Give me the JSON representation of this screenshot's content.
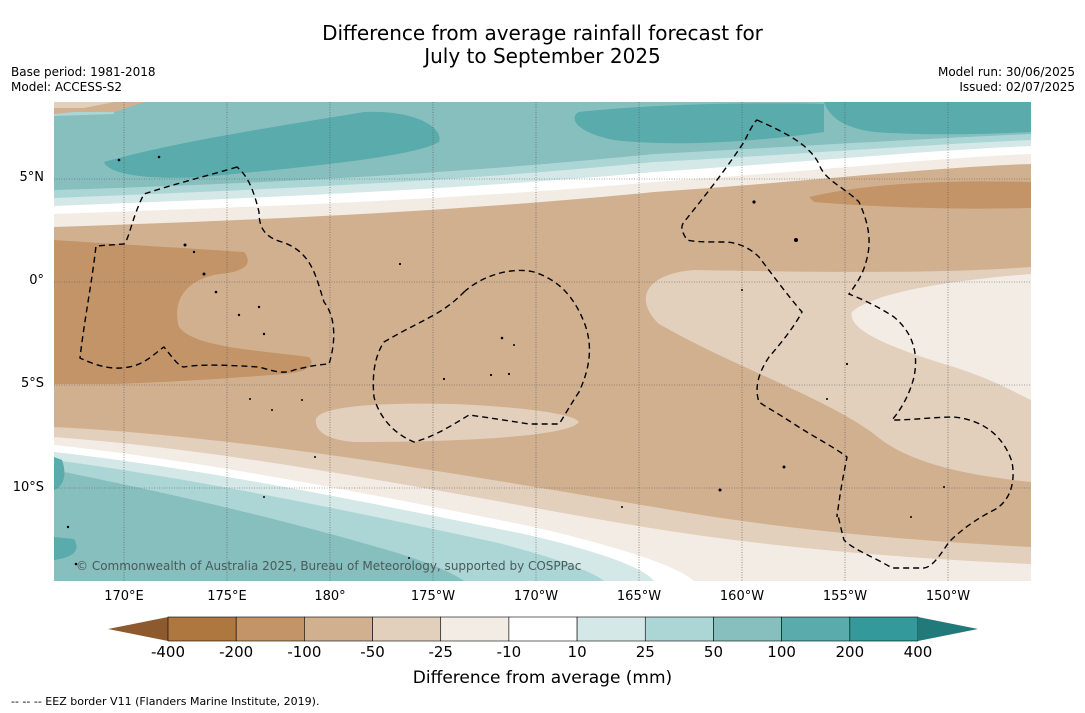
{
  "title_line1": "Difference from average rainfall forecast for",
  "title_line2": "July to September 2025",
  "meta_left": {
    "base_period": "Base period: 1981-2018",
    "model": "Model: ACCESS-S2"
  },
  "meta_right": {
    "model_run": "Model run: 30/06/2025",
    "issued": "Issued: 02/07/2025"
  },
  "latitude_labels": [
    "5°N",
    "0°",
    "5°S",
    "10°S"
  ],
  "longitude_labels": [
    "170°E",
    "175°E",
    "180°",
    "175°W",
    "170°W",
    "165°W",
    "160°W",
    "155°W",
    "150°W"
  ],
  "copyright": "© Commonwealth of Australia 2025, Bureau of Meteorology, supported by COSPPac",
  "colorbar": {
    "ticks": [
      "-400",
      "-200",
      "-100",
      "-50",
      "-25",
      "-10",
      "10",
      "25",
      "50",
      "100",
      "200",
      "400"
    ],
    "colors": [
      "#8c5a2e",
      "#ae773f",
      "#c29468",
      "#d1b08f",
      "#e2cfbc",
      "#f3ece4",
      "#ffffff",
      "#d3e8e7",
      "#acd6d5",
      "#86bfbe",
      "#5aabac",
      "#33999a",
      "#22797a"
    ],
    "title": "Difference from average (mm)"
  },
  "footnote": "--  --  -- EEZ border V11 (Flanders Marine Institute, 2019).",
  "map_colors": {
    "neg400": "#ae773f",
    "neg200": "#c29468",
    "neg100": "#d1b08f",
    "neg50": "#e2cfbc",
    "neg25": "#f3ece4",
    "pos10": "#ffffff",
    "pos25": "#d3e8e7",
    "pos50": "#acd6d5",
    "pos100": "#86bfbe",
    "pos200": "#5aabac"
  }
}
